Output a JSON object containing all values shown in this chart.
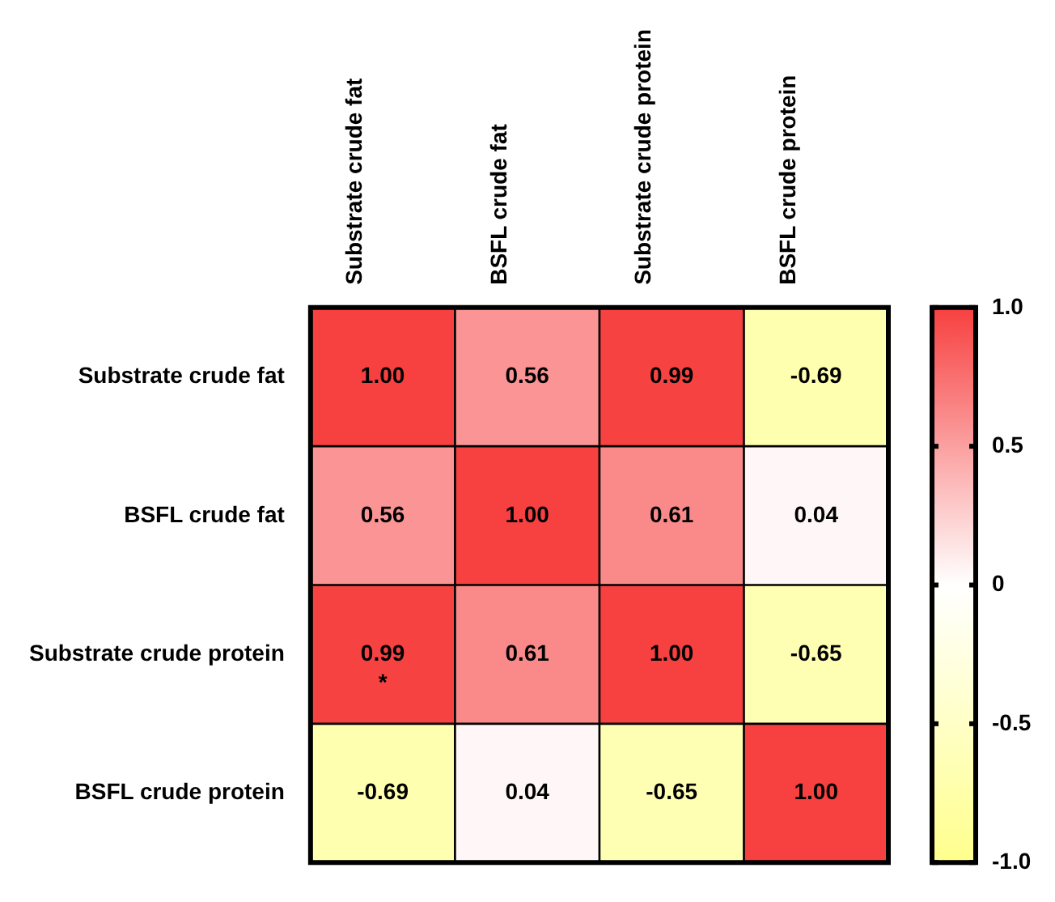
{
  "chart_data": {
    "type": "heatmap",
    "categories": [
      "Substrate crude fat",
      "BSFL crude fat",
      "Substrate crude protein",
      "BSFL crude protein"
    ],
    "y_categories": [
      "Substrate crude fat",
      "BSFL crude fat",
      "Substrate crude protein",
      "BSFL crude protein"
    ],
    "cells": [
      [
        1.0,
        0.56,
        0.99,
        -0.69
      ],
      [
        0.56,
        1.0,
        0.61,
        0.04
      ],
      [
        0.99,
        0.61,
        1.0,
        -0.65
      ],
      [
        -0.69,
        0.04,
        -0.65,
        1.0
      ]
    ],
    "cell_labels": [
      [
        "1.00",
        "0.56",
        "0.99",
        "-0.69"
      ],
      [
        "0.56",
        "1.00",
        "0.61",
        "0.04"
      ],
      [
        "0.99\n*",
        "0.61",
        "1.00",
        "-0.65"
      ],
      [
        "-0.69",
        "0.04",
        "-0.65",
        "1.00"
      ]
    ],
    "clim": [
      -1.0,
      1.0
    ],
    "cticks": [
      {
        "value": -1.0,
        "label": "-1.0"
      },
      {
        "value": -0.5,
        "label": "-0.5"
      },
      0,
      {
        "value": 0.5,
        "label": "0.5"
      },
      {
        "value": 1.0,
        "label": "1.0"
      }
    ]
  }
}
